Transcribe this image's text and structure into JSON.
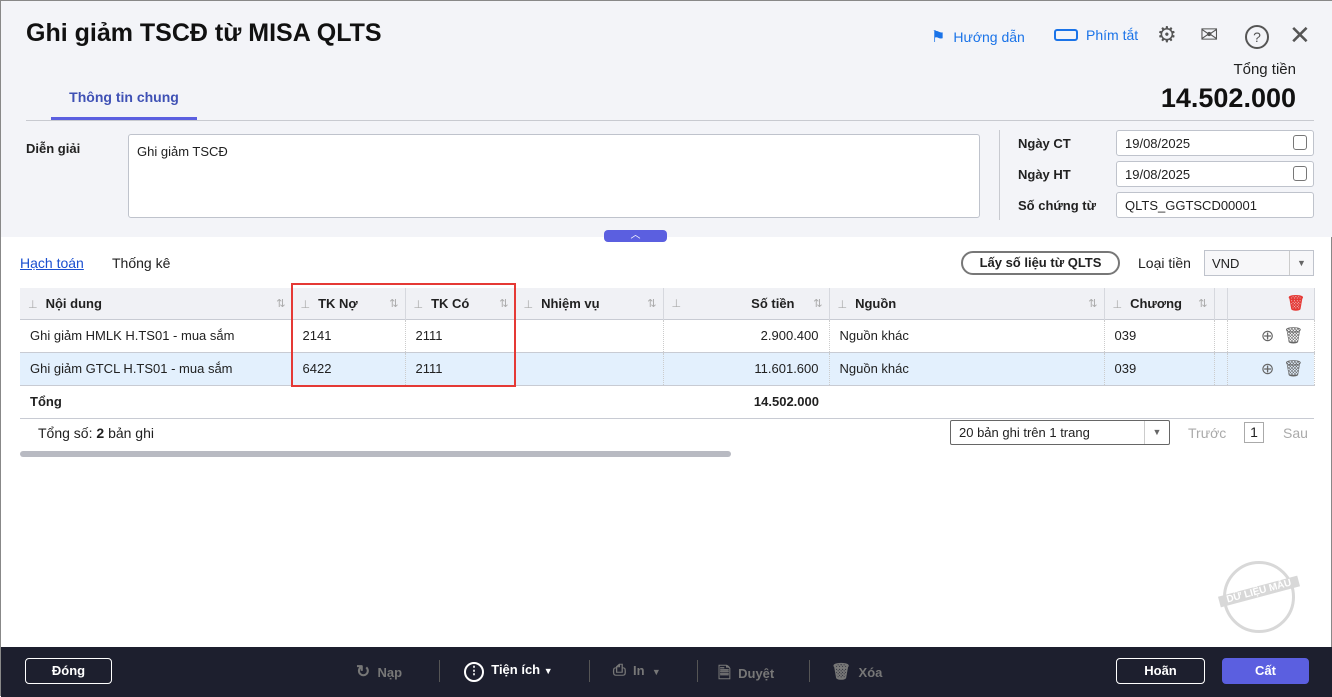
{
  "window": {
    "title": "Ghi giảm TSCĐ từ MISA QLTS"
  },
  "header": {
    "guide": "Hướng dẫn",
    "shortcuts": "Phím tắt",
    "total_label": "Tổng tiền",
    "total_value": "14.502.000"
  },
  "tabs": [
    {
      "label": "Thông tin chung",
      "active": true
    }
  ],
  "form": {
    "dien_giai_label": "Diễn giải",
    "dien_giai_value": "Ghi giảm TSCĐ",
    "ngay_ct_label": "Ngày CT",
    "ngay_ct_value": "19/08/2025",
    "ngay_ht_label": "Ngày HT",
    "ngay_ht_value": "19/08/2025",
    "so_ct_label": "Số chứng từ",
    "so_ct_value": "QLTS_GGTSCD00001"
  },
  "detail_tabs": [
    "Hạch toán",
    "Thống kê"
  ],
  "toolbar": {
    "fetch_button": "Lấy số liệu từ QLTS",
    "currency_label": "Loại tiền",
    "currency_value": "VND"
  },
  "table": {
    "columns": [
      "Nội dung",
      "TK Nợ",
      "TK Có",
      "Nhiệm vụ",
      "Số tiền",
      "Nguồn",
      "Chương"
    ],
    "rows": [
      {
        "noi_dung": "Ghi giảm HMLK H.TS01 - mua sắm",
        "tk_no": "2141",
        "tk_co": "2111",
        "nhiem_vu": "",
        "so_tien": "2.900.400",
        "nguon": "Nguồn khác",
        "chuong": "039"
      },
      {
        "noi_dung": "Ghi giảm GTCL H.TS01 - mua sắm",
        "tk_no": "6422",
        "tk_co": "2111",
        "nhiem_vu": "",
        "so_tien": "11.601.600",
        "nguon": "Nguồn khác",
        "chuong": "039"
      }
    ],
    "total_label": "Tổng",
    "total_value": "14.502.000"
  },
  "pagination": {
    "count_prefix": "Tổng số:",
    "count": "2",
    "count_suffix": "bản ghi",
    "page_size": "20 bản ghi trên 1 trang",
    "prev": "Trước",
    "page": "1",
    "next": "Sau"
  },
  "watermark": "DỮ LIỆU MẪU",
  "footer": {
    "close": "Đóng",
    "reload": "Nạp",
    "utilities": "Tiện ích",
    "print": "In",
    "approve": "Duyệt",
    "delete": "Xóa",
    "cancel": "Hoãn",
    "save": "Cất"
  },
  "colors": {
    "accent": "#5b5fe0",
    "highlight": "#e53935",
    "selected_row": "#e3f0fd",
    "footer_bg": "#1d1f2e"
  }
}
